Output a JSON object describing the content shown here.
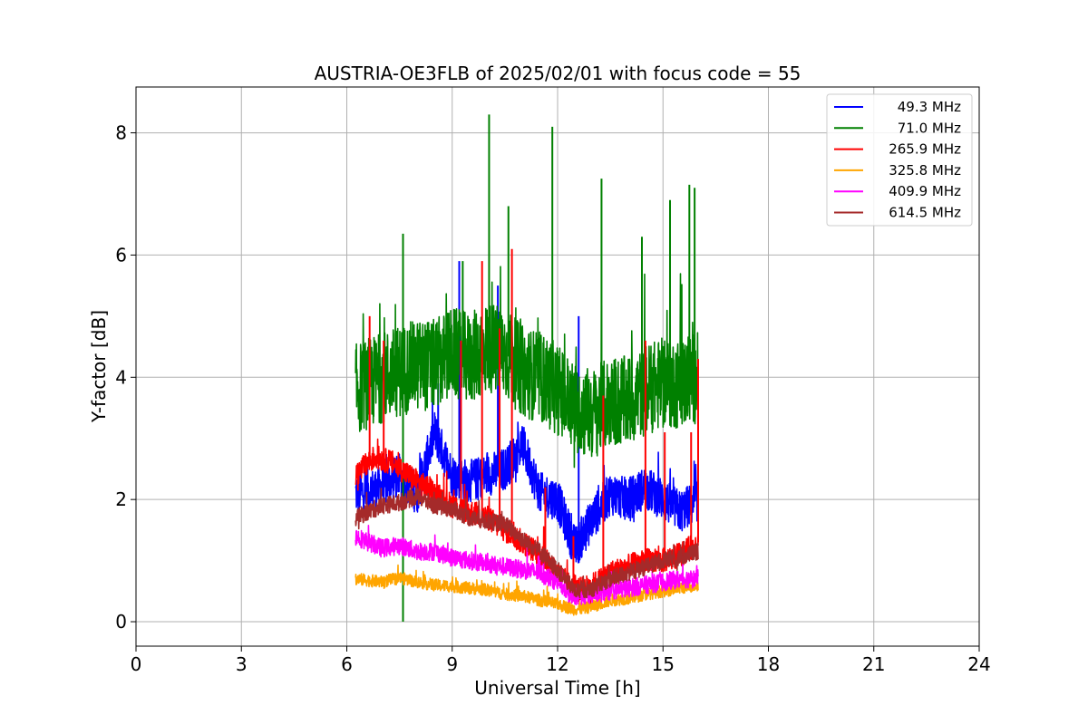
{
  "chart_data": {
    "type": "line",
    "title": "AUSTRIA-OE3FLB of 2025/02/01 with focus code = 55",
    "xlabel": "Universal Time [h]",
    "ylabel": "Y-factor [dB]",
    "xlim": [
      0,
      24
    ],
    "ylim": [
      -0.4,
      8.75
    ],
    "xticks": [
      0,
      3,
      6,
      9,
      12,
      15,
      18,
      21,
      24
    ],
    "yticks": [
      0,
      2,
      4,
      6,
      8
    ],
    "grid": true,
    "legend_position": "top-right",
    "x_range_of_data": [
      6.25,
      16.0
    ],
    "series": [
      {
        "name": "49.3 MHz",
        "color": "#0000ff",
        "noise": 0.35,
        "points": [
          [
            6.25,
            2.1
          ],
          [
            7.0,
            2.2
          ],
          [
            7.5,
            2.4
          ],
          [
            8.0,
            2.1
          ],
          [
            8.5,
            3.1
          ],
          [
            9.0,
            2.4
          ],
          [
            9.5,
            2.3
          ],
          [
            10.0,
            2.4
          ],
          [
            10.5,
            2.5
          ],
          [
            11.0,
            2.9
          ],
          [
            11.5,
            2.1
          ],
          [
            12.0,
            2.0
          ],
          [
            12.5,
            1.2
          ],
          [
            13.0,
            1.7
          ],
          [
            13.5,
            2.1
          ],
          [
            14.0,
            2.0
          ],
          [
            14.5,
            2.2
          ],
          [
            15.0,
            2.0
          ],
          [
            15.5,
            1.8
          ],
          [
            16.0,
            2.0
          ]
        ],
        "spikes": [
          [
            9.2,
            5.9
          ],
          [
            10.3,
            5.5
          ],
          [
            12.6,
            5.0
          ],
          [
            8.6,
            3.9
          ]
        ]
      },
      {
        "name": "71.0 MHz",
        "color": "#008000",
        "noise": 0.75,
        "points": [
          [
            6.25,
            3.8
          ],
          [
            7.0,
            4.0
          ],
          [
            7.5,
            4.1
          ],
          [
            8.0,
            4.2
          ],
          [
            8.5,
            4.2
          ],
          [
            9.0,
            4.4
          ],
          [
            9.5,
            4.3
          ],
          [
            10.0,
            4.5
          ],
          [
            10.5,
            4.4
          ],
          [
            11.0,
            4.1
          ],
          [
            11.5,
            4.0
          ],
          [
            12.0,
            3.8
          ],
          [
            12.5,
            3.5
          ],
          [
            13.0,
            3.4
          ],
          [
            13.5,
            3.6
          ],
          [
            14.0,
            3.6
          ],
          [
            14.5,
            3.8
          ],
          [
            15.0,
            3.9
          ],
          [
            15.5,
            3.9
          ],
          [
            16.0,
            4.0
          ]
        ],
        "spikes": [
          [
            10.05,
            8.3
          ],
          [
            11.85,
            8.1
          ],
          [
            13.25,
            7.25
          ],
          [
            15.75,
            7.15
          ],
          [
            15.9,
            7.1
          ],
          [
            15.2,
            6.9
          ],
          [
            7.6,
            6.35
          ],
          [
            10.6,
            6.8
          ],
          [
            14.4,
            6.3
          ],
          [
            9.3,
            5.9
          ],
          [
            7.6,
            0.0
          ]
        ]
      },
      {
        "name": "265.9 MHz",
        "color": "#ff0000",
        "noise": 0.2,
        "points": [
          [
            6.25,
            2.4
          ],
          [
            6.8,
            2.7
          ],
          [
            7.3,
            2.6
          ],
          [
            8.0,
            2.3
          ],
          [
            8.5,
            2.1
          ],
          [
            9.0,
            1.9
          ],
          [
            9.5,
            1.8
          ],
          [
            10.0,
            1.7
          ],
          [
            10.5,
            1.5
          ],
          [
            11.0,
            1.3
          ],
          [
            11.5,
            1.1
          ],
          [
            12.0,
            0.8
          ],
          [
            12.5,
            0.5
          ],
          [
            13.0,
            0.6
          ],
          [
            13.5,
            0.8
          ],
          [
            14.0,
            0.9
          ],
          [
            14.5,
            1.0
          ],
          [
            15.0,
            1.0
          ],
          [
            15.5,
            1.1
          ],
          [
            16.0,
            1.3
          ]
        ],
        "spikes": [
          [
            6.65,
            5.0
          ],
          [
            7.05,
            4.6
          ],
          [
            9.25,
            4.6
          ],
          [
            9.85,
            5.9
          ],
          [
            10.35,
            4.8
          ],
          [
            10.7,
            6.1
          ],
          [
            13.3,
            3.7
          ],
          [
            14.5,
            4.6
          ],
          [
            15.05,
            3.1
          ],
          [
            15.8,
            3.1
          ],
          [
            16.0,
            4.3
          ],
          [
            12.45,
            1.4
          ],
          [
            11.65,
            2.2
          ]
        ]
      },
      {
        "name": "325.8 MHz",
        "color": "#ffa500",
        "noise": 0.1,
        "points": [
          [
            6.25,
            0.7
          ],
          [
            7.0,
            0.65
          ],
          [
            7.5,
            0.72
          ],
          [
            8.0,
            0.65
          ],
          [
            8.5,
            0.6
          ],
          [
            9.0,
            0.58
          ],
          [
            9.5,
            0.55
          ],
          [
            10.0,
            0.52
          ],
          [
            10.5,
            0.45
          ],
          [
            11.0,
            0.42
          ],
          [
            11.5,
            0.35
          ],
          [
            12.0,
            0.28
          ],
          [
            12.5,
            0.2
          ],
          [
            13.0,
            0.25
          ],
          [
            13.5,
            0.35
          ],
          [
            14.0,
            0.38
          ],
          [
            14.5,
            0.45
          ],
          [
            15.0,
            0.5
          ],
          [
            15.5,
            0.55
          ],
          [
            16.0,
            0.6
          ]
        ],
        "spikes": []
      },
      {
        "name": "409.9 MHz",
        "color": "#ff00ff",
        "noise": 0.15,
        "points": [
          [
            6.25,
            1.4
          ],
          [
            7.0,
            1.2
          ],
          [
            7.5,
            1.25
          ],
          [
            8.0,
            1.15
          ],
          [
            8.5,
            1.15
          ],
          [
            9.0,
            1.05
          ],
          [
            9.5,
            1.0
          ],
          [
            10.0,
            0.95
          ],
          [
            10.5,
            0.9
          ],
          [
            11.0,
            0.85
          ],
          [
            11.5,
            0.8
          ],
          [
            12.0,
            0.65
          ],
          [
            12.5,
            0.4
          ],
          [
            13.0,
            0.45
          ],
          [
            13.5,
            0.5
          ],
          [
            14.0,
            0.55
          ],
          [
            14.5,
            0.6
          ],
          [
            15.0,
            0.65
          ],
          [
            15.5,
            0.7
          ],
          [
            16.0,
            0.7
          ]
        ],
        "spikes": []
      },
      {
        "name": "614.5 MHz",
        "color": "#a52a2a",
        "noise": 0.14,
        "points": [
          [
            6.25,
            1.7
          ],
          [
            7.0,
            1.9
          ],
          [
            7.5,
            1.95
          ],
          [
            8.0,
            2.05
          ],
          [
            8.5,
            1.9
          ],
          [
            9.0,
            1.85
          ],
          [
            9.5,
            1.7
          ],
          [
            10.0,
            1.65
          ],
          [
            10.5,
            1.6
          ],
          [
            11.0,
            1.35
          ],
          [
            11.5,
            1.15
          ],
          [
            12.0,
            0.85
          ],
          [
            12.5,
            0.5
          ],
          [
            13.0,
            0.55
          ],
          [
            13.5,
            0.7
          ],
          [
            14.0,
            0.8
          ],
          [
            14.5,
            0.9
          ],
          [
            15.0,
            1.0
          ],
          [
            15.5,
            1.05
          ],
          [
            16.0,
            1.15
          ]
        ],
        "spikes": []
      }
    ]
  }
}
